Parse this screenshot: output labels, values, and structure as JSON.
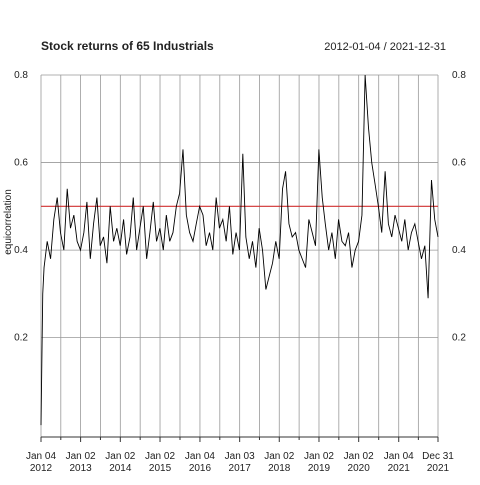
{
  "chart_data": {
    "type": "line",
    "title": "Stock returns of 65 Industrials",
    "subtitle": "2012-01-04 / 2021-12-31",
    "y_label": "equicorrelation",
    "x": [
      "2012-01-04",
      "2012-01-20",
      "2012-02-01",
      "2012-03-01",
      "2012-04-01",
      "2012-05-01",
      "2012-06-01",
      "2012-07-01",
      "2012-08-01",
      "2012-09-01",
      "2012-10-01",
      "2012-11-01",
      "2012-12-01",
      "2013-01-01",
      "2013-02-01",
      "2013-03-01",
      "2013-04-01",
      "2013-05-01",
      "2013-06-01",
      "2013-07-01",
      "2013-08-01",
      "2013-09-01",
      "2013-10-01",
      "2013-11-01",
      "2013-12-01",
      "2014-01-01",
      "2014-02-01",
      "2014-03-01",
      "2014-04-01",
      "2014-05-01",
      "2014-06-01",
      "2014-07-01",
      "2014-08-01",
      "2014-09-01",
      "2014-10-01",
      "2014-11-01",
      "2014-12-01",
      "2015-01-01",
      "2015-02-01",
      "2015-03-01",
      "2015-04-01",
      "2015-05-01",
      "2015-06-01",
      "2015-07-01",
      "2015-08-01",
      "2015-09-01",
      "2015-10-01",
      "2015-11-01",
      "2015-12-01",
      "2016-01-01",
      "2016-02-01",
      "2016-03-01",
      "2016-04-01",
      "2016-05-01",
      "2016-06-01",
      "2016-07-01",
      "2016-08-01",
      "2016-09-01",
      "2016-10-01",
      "2016-11-01",
      "2016-12-01",
      "2017-01-01",
      "2017-02-01",
      "2017-03-01",
      "2017-04-01",
      "2017-05-01",
      "2017-06-01",
      "2017-07-01",
      "2017-08-01",
      "2017-09-01",
      "2017-10-01",
      "2017-11-01",
      "2017-12-01",
      "2018-01-01",
      "2018-02-01",
      "2018-03-01",
      "2018-04-01",
      "2018-05-01",
      "2018-06-01",
      "2018-07-01",
      "2018-08-01",
      "2018-09-01",
      "2018-10-01",
      "2018-11-01",
      "2018-12-01",
      "2019-01-01",
      "2019-02-01",
      "2019-03-01",
      "2019-04-01",
      "2019-05-01",
      "2019-06-01",
      "2019-07-01",
      "2019-08-01",
      "2019-09-01",
      "2019-10-01",
      "2019-11-01",
      "2019-12-01",
      "2020-01-01",
      "2020-02-01",
      "2020-03-01",
      "2020-04-01",
      "2020-05-01",
      "2020-06-01",
      "2020-07-01",
      "2020-08-01",
      "2020-09-01",
      "2020-10-01",
      "2020-11-01",
      "2020-12-01",
      "2021-01-01",
      "2021-02-01",
      "2021-03-01",
      "2021-04-01",
      "2021-05-01",
      "2021-06-01",
      "2021-07-01",
      "2021-08-01",
      "2021-09-01",
      "2021-10-01",
      "2021-11-01",
      "2021-12-01",
      "2021-12-31"
    ],
    "values": [
      0.0,
      0.3,
      0.36,
      0.42,
      0.38,
      0.47,
      0.52,
      0.44,
      0.4,
      0.54,
      0.45,
      0.48,
      0.42,
      0.4,
      0.44,
      0.51,
      0.38,
      0.46,
      0.52,
      0.41,
      0.43,
      0.37,
      0.5,
      0.42,
      0.45,
      0.41,
      0.47,
      0.39,
      0.43,
      0.52,
      0.4,
      0.45,
      0.5,
      0.38,
      0.44,
      0.51,
      0.42,
      0.45,
      0.4,
      0.48,
      0.42,
      0.44,
      0.5,
      0.53,
      0.63,
      0.48,
      0.44,
      0.42,
      0.46,
      0.5,
      0.48,
      0.41,
      0.44,
      0.4,
      0.52,
      0.45,
      0.47,
      0.42,
      0.5,
      0.39,
      0.44,
      0.4,
      0.62,
      0.43,
      0.38,
      0.42,
      0.36,
      0.45,
      0.4,
      0.31,
      0.34,
      0.37,
      0.42,
      0.38,
      0.54,
      0.58,
      0.46,
      0.43,
      0.44,
      0.4,
      0.38,
      0.36,
      0.47,
      0.44,
      0.41,
      0.63,
      0.52,
      0.46,
      0.4,
      0.44,
      0.38,
      0.47,
      0.42,
      0.41,
      0.44,
      0.36,
      0.4,
      0.42,
      0.48,
      0.8,
      0.68,
      0.6,
      0.55,
      0.5,
      0.44,
      0.58,
      0.46,
      0.43,
      0.48,
      0.45,
      0.42,
      0.47,
      0.4,
      0.44,
      0.46,
      0.42,
      0.38,
      0.41,
      0.29,
      0.56,
      0.47,
      0.43
    ],
    "color": "#000000",
    "xlim": [
      "2012-01-04",
      "2021-12-31"
    ],
    "xticks": [
      {
        "value": "2012-01-04",
        "label": [
          "Jan 04",
          "2012"
        ]
      },
      {
        "value": "2013-01-02",
        "label": [
          "Jan 02",
          "2013"
        ]
      },
      {
        "value": "2014-01-02",
        "label": [
          "Jan 02",
          "2014"
        ]
      },
      {
        "value": "2015-01-02",
        "label": [
          "Jan 02",
          "2015"
        ]
      },
      {
        "value": "2016-01-04",
        "label": [
          "Jan 04",
          "2016"
        ]
      },
      {
        "value": "2017-01-03",
        "label": [
          "Jan 03",
          "2017"
        ]
      },
      {
        "value": "2018-01-02",
        "label": [
          "Jan 02",
          "2018"
        ]
      },
      {
        "value": "2019-01-02",
        "label": [
          "Jan 02",
          "2019"
        ]
      },
      {
        "value": "2020-01-02",
        "label": [
          "Jan 02",
          "2020"
        ]
      },
      {
        "value": "2021-01-04",
        "label": [
          "Jan 04",
          "2021"
        ]
      },
      {
        "value": "2021-12-31",
        "label": [
          "Dec 31",
          "2021"
        ]
      }
    ],
    "ylim": [
      -0.027,
      0.8
    ],
    "yticks": [
      0.2,
      0.4,
      0.6,
      0.8
    ],
    "grid": true,
    "reference_line": {
      "value": 0.5,
      "color": "#d03030"
    }
  }
}
